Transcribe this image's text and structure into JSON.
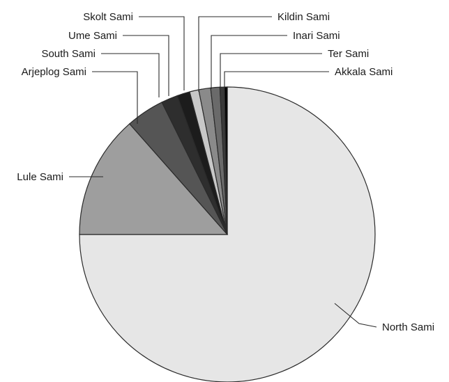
{
  "chart_data": {
    "type": "pie",
    "title": "",
    "start_angle_deg": 0,
    "direction": "clockwise",
    "slices": [
      {
        "label": "North Sami",
        "value": 75.0,
        "color": "#e6e6e6"
      },
      {
        "label": "Lule Sami",
        "value": 13.5,
        "color": "#9e9e9e"
      },
      {
        "label": "Arjeplog Sami",
        "value": 4.2,
        "color": "#555555"
      },
      {
        "label": "South Sami",
        "value": 1.8,
        "color": "#2e2e2e"
      },
      {
        "label": "Ume Sami",
        "value": 1.4,
        "color": "#1c1c1c"
      },
      {
        "label": "Skolt Sami",
        "value": 1.0,
        "color": "#c8c8c8"
      },
      {
        "label": "Kildin Sami",
        "value": 1.3,
        "color": "#8a8a8a"
      },
      {
        "label": "Inari Sami",
        "value": 1.0,
        "color": "#6a6a6a"
      },
      {
        "label": "Ter Sami",
        "value": 0.5,
        "color": "#3a3a3a"
      },
      {
        "label": "Akkala Sami",
        "value": 0.3,
        "color": "#000000"
      }
    ],
    "legend": "none",
    "labels": "outside-with-leader-lines"
  }
}
